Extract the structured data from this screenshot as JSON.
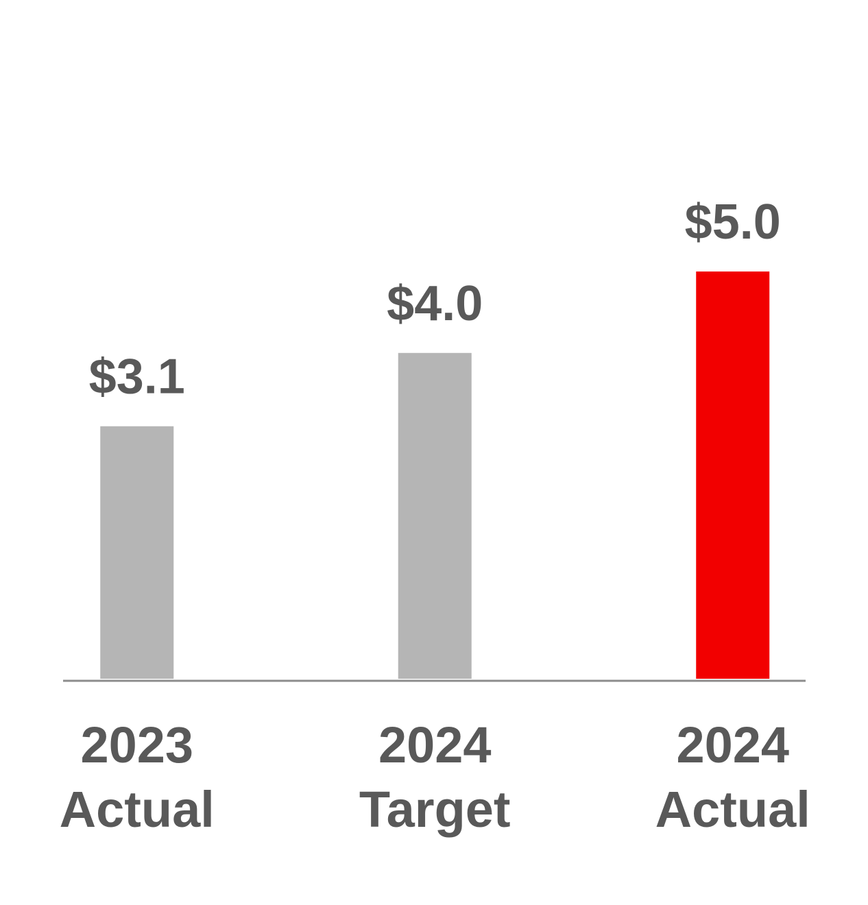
{
  "chart_data": {
    "type": "bar",
    "categories": [
      "2023\nActual",
      "2024\nTarget",
      "2024\nActual"
    ],
    "values": [
      3.1,
      4.0,
      5.0
    ],
    "value_labels": [
      "$3.1",
      "$4.0",
      "$5.0"
    ],
    "colors": [
      "#b5b5b5",
      "#b5b5b5",
      "#f20000"
    ],
    "ylim": [
      0,
      5
    ]
  }
}
